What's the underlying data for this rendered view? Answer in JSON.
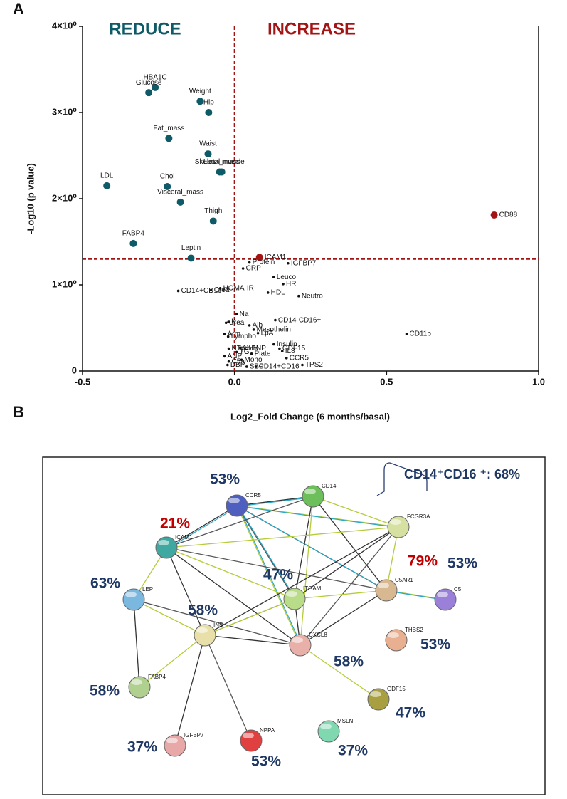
{
  "chart_data": {
    "type": "scatter",
    "panel_label": "A",
    "x_label": "Log2_Fold Change (6 months/basal)",
    "y_label": "-Log10 (p value)",
    "annotations": [
      {
        "text": "REDUCE",
        "color": "#0e5a66"
      },
      {
        "text": "INCREASE",
        "color": "#a31515"
      }
    ],
    "xlim": [
      -0.5,
      1.0
    ],
    "ylim": [
      0,
      4
    ],
    "xticks": [
      -0.5,
      {
        "value": 0,
        "label": "0.0"
      },
      0.5,
      {
        "value": 1,
        "label": "1.0"
      }
    ],
    "yticks": [
      0,
      {
        "value": 1,
        "label": "1×10⁰"
      },
      {
        "value": 2,
        "label": "2×10⁰"
      },
      {
        "value": 3,
        "label": "3×10⁰"
      },
      {
        "value": 4,
        "label": "4×10⁰"
      }
    ],
    "threshold_x": 0,
    "threshold_y": 1.3,
    "threshold_color": "#a31515",
    "series": [
      {
        "color": "#0e5a66",
        "marker_size": 5,
        "labels": [
          "HBA1C",
          "Glucose",
          "Weight",
          "Hip",
          "Fat_mass",
          "Waist",
          "Skeletal muscle",
          "Lean_mass",
          "LDL",
          "Chol",
          "Visceral_mass",
          "Thigh",
          "FABP4",
          "Leptin"
        ],
        "x": [
          -0.261,
          -0.282,
          -0.113,
          -0.085,
          -0.216,
          -0.087,
          -0.049,
          -0.042,
          -0.42,
          -0.221,
          -0.178,
          -0.07,
          -0.333,
          -0.143
        ],
        "values": [
          3.29,
          3.23,
          3.13,
          3.0,
          2.7,
          2.52,
          2.31,
          2.31,
          2.15,
          2.14,
          1.96,
          1.74,
          1.48,
          1.31
        ]
      },
      {
        "color": "#a31515",
        "marker_size": 5,
        "labels": [
          "CD88",
          "ICAM1"
        ],
        "x": [
          0.854,
          0.082
        ],
        "values": [
          1.81,
          1.32
        ]
      },
      {
        "color": "#111111",
        "marker_size": 1.8,
        "labels": [
          "Protein",
          "IGFBP7",
          "CRP",
          "Leuco",
          "HR",
          "HDL",
          "Neutro",
          "CD14+CD16+",
          "HOMA-IR",
          "Crea",
          "Na",
          "Urea",
          "K",
          "Alb",
          "CD14-CD16+",
          "Mesothelin",
          "Arm",
          "Lympho",
          "LpA",
          "Insulin",
          "GDF15",
          "NTproBNP",
          "GFR",
          "TG",
          "IL8",
          "Plate",
          "ANP",
          "CCR5",
          "C5a",
          "Mono",
          "DBP",
          "SBP",
          "CD14+CD16",
          "TPS2",
          "CD11b"
        ],
        "x": [
          0.049,
          0.176,
          0.028,
          0.129,
          0.16,
          0.11,
          0.211,
          -0.185,
          -0.047,
          -0.077,
          0.007,
          -0.028,
          -0.02,
          0.049,
          0.134,
          0.063,
          -0.033,
          -0.021,
          0.077,
          0.129,
          0.148,
          -0.019,
          0.019,
          0.007,
          0.157,
          0.056,
          -0.033,
          0.171,
          -0.019,
          0.023,
          -0.023,
          0.04,
          0.07,
          0.223,
          0.566
        ],
        "values": [
          1.26,
          1.25,
          1.19,
          1.09,
          1.01,
          0.91,
          0.87,
          0.93,
          0.96,
          0.94,
          0.66,
          0.56,
          0.57,
          0.53,
          0.59,
          0.48,
          0.43,
          0.4,
          0.44,
          0.31,
          0.26,
          0.26,
          0.27,
          0.22,
          0.23,
          0.2,
          0.17,
          0.15,
          0.11,
          0.13,
          0.07,
          0.05,
          0.05,
          0.07,
          0.43
        ]
      }
    ]
  },
  "network": {
    "panel_label": "B",
    "bracket_label": "CD14⁺CD16 ⁺: 68%",
    "nodes": [
      {
        "label": "CCR5",
        "color": "#4f5fc0",
        "percent": "53%",
        "percent_color": "#1f3864"
      },
      {
        "label": "CD14",
        "color": "#6cbf5a"
      },
      {
        "label": "FCGR3A",
        "color": "#d6e0a0"
      },
      {
        "label": "ICAM1",
        "color": "#3fa8a0",
        "percent": "21%",
        "percent_color": "#c00000"
      },
      {
        "label": "C5AR1",
        "color": "#d8b890",
        "percent": "79%",
        "percent_color": "#c00000"
      },
      {
        "label": "C5",
        "color": "#9a80d8",
        "percent": "53%",
        "percent_color": "#1f3864"
      },
      {
        "label": "ITGAM",
        "color": "#b8dc88",
        "percent": "47%",
        "percent_color": "#1f3864"
      },
      {
        "label": "LEP",
        "color": "#7ab8e0",
        "percent": "63%",
        "percent_color": "#1f3864"
      },
      {
        "label": "THBS2",
        "color": "#e8b090",
        "percent": "53%",
        "percent_color": "#1f3864"
      },
      {
        "label": "CXCL8",
        "color": "#e8b0a8",
        "percent": "58%",
        "percent_color": "#1f3864"
      },
      {
        "label": "INS",
        "color": "#e8e0a8",
        "percent": "58%",
        "percent_color": "#1f3864"
      },
      {
        "label": "FABP4",
        "color": "#b0d090",
        "percent": "58%",
        "percent_color": "#1f3864"
      },
      {
        "label": "GDF15",
        "color": "#a8a040",
        "percent": "47%",
        "percent_color": "#1f3864"
      },
      {
        "label": "MSLN",
        "color": "#80d8b0",
        "percent": "37%",
        "percent_color": "#1f3864"
      },
      {
        "label": "NPPA",
        "color": "#e04040",
        "percent": "53%",
        "percent_color": "#1f3864"
      },
      {
        "label": "IGFBP7",
        "color": "#e8a8a8",
        "percent": "37%",
        "percent_color": "#1f3864"
      }
    ]
  }
}
